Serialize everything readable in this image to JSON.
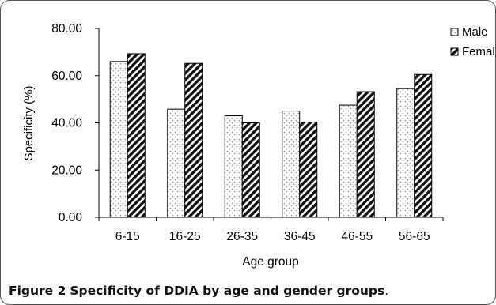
{
  "chart_data": {
    "type": "bar",
    "title": "",
    "xlabel": "Age group",
    "ylabel": "Specificity (%)",
    "ylim": [
      0,
      80
    ],
    "yticks": [
      "0.00",
      "20.00",
      "40.00",
      "60.00",
      "80.00"
    ],
    "categories": [
      "6-15",
      "16-25",
      "26-35",
      "36-45",
      "46-55",
      "56-65"
    ],
    "series": [
      {
        "name": "Male",
        "values": [
          66.0,
          45.8,
          43.0,
          45.0,
          47.5,
          54.5
        ],
        "pattern": "dots"
      },
      {
        "name": "Female",
        "values": [
          69.3,
          65.2,
          40.0,
          40.3,
          53.2,
          60.5
        ],
        "pattern": "hatch"
      }
    ],
    "grid": false,
    "legend": "top-right"
  },
  "caption": {
    "label": "Figure 2",
    "text": "Specificity of DDIA by age and gender groups",
    "end": "."
  }
}
